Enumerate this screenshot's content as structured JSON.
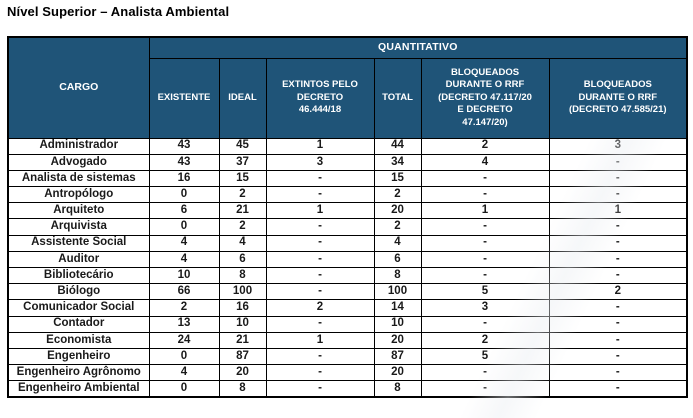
{
  "title": "Nível Superior – Analista Ambiental",
  "colors": {
    "header_bg": "#1F5478",
    "header_text": "#FFFFFF",
    "border": "#000000",
    "body_text": "#1A1A1A",
    "page_bg": "#FFFFFF"
  },
  "table": {
    "group_header": "QUANTITATIVO",
    "columns": [
      "CARGO",
      "EXISTENTE",
      "IDEAL",
      "EXTINTOS PELO\nDECRETO\n46.444/18",
      "TOTAL",
      "BLOQUEADOS\nDURANTE O RRF\n(DECRETO 47.117/20\nE DECRETO\n47.147/20)",
      "BLOQUEADOS\nDURANTE O RRF\n(DECRETO 47.585/21)"
    ],
    "rows": [
      [
        "Administrador",
        "43",
        "45",
        "1",
        "44",
        "2",
        "3"
      ],
      [
        "Advogado",
        "43",
        "37",
        "3",
        "34",
        "4",
        "-"
      ],
      [
        "Analista de sistemas",
        "16",
        "15",
        "-",
        "15",
        "-",
        "-"
      ],
      [
        "Antropólogo",
        "0",
        "2",
        "-",
        "2",
        "-",
        "-"
      ],
      [
        "Arquiteto",
        "6",
        "21",
        "1",
        "20",
        "1",
        "1"
      ],
      [
        "Arquivista",
        "0",
        "2",
        "-",
        "2",
        "-",
        "-"
      ],
      [
        "Assistente Social",
        "4",
        "4",
        "-",
        "4",
        "-",
        "-"
      ],
      [
        "Auditor",
        "4",
        "6",
        "-",
        "6",
        "-",
        "-"
      ],
      [
        "Bibliotecário",
        "10",
        "8",
        "-",
        "8",
        "-",
        "-"
      ],
      [
        "Biólogo",
        "66",
        "100",
        "-",
        "100",
        "5",
        "2"
      ],
      [
        "Comunicador Social",
        "2",
        "16",
        "2",
        "14",
        "3",
        "-"
      ],
      [
        "Contador",
        "13",
        "10",
        "-",
        "10",
        "-",
        "-"
      ],
      [
        "Economista",
        "24",
        "21",
        "1",
        "20",
        "2",
        "-"
      ],
      [
        "Engenheiro",
        "0",
        "87",
        "-",
        "87",
        "5",
        "-"
      ],
      [
        "Engenheiro Agrônomo",
        "4",
        "20",
        "-",
        "20",
        "-",
        "-"
      ],
      [
        "Engenheiro Ambiental",
        "0",
        "8",
        "-",
        "8",
        "-",
        "-"
      ]
    ]
  }
}
